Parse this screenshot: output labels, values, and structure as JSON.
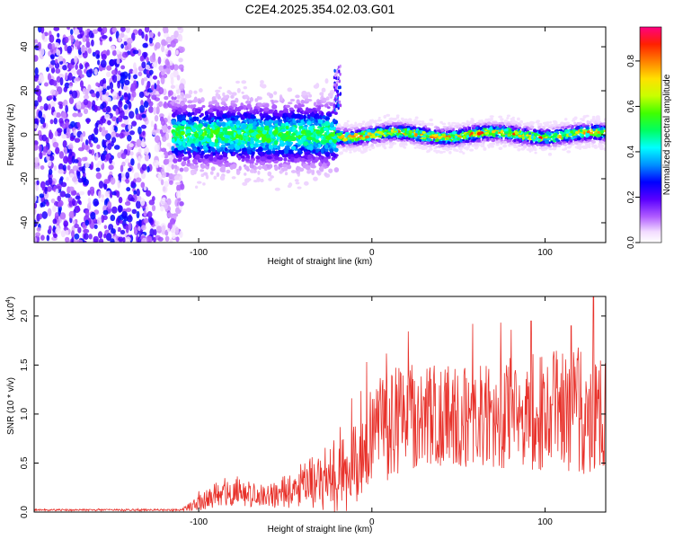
{
  "title": "C2E4.2025.354.02.03.G01",
  "chart_data": [
    {
      "type": "heatmap",
      "title": "C2E4.2025.354.02.03.G01",
      "xlabel": "Height of straight line (km)",
      "ylabel": "Frequency (Hz)",
      "xlim": [
        -195,
        135
      ],
      "ylim": [
        -49,
        49
      ],
      "xticks": [
        -100,
        0,
        100
      ],
      "xtick_labels": [
        "-100",
        "0",
        "100"
      ],
      "yticks": [
        -40,
        -20,
        0,
        20,
        40
      ],
      "ytick_labels": [
        "-40",
        "-20",
        "0",
        "20",
        "40"
      ],
      "colorbar": {
        "label": "Normalized spectral amplitude",
        "range": [
          0.0,
          0.95
        ],
        "ticks": [
          0.0,
          0.2,
          0.4,
          0.6,
          0.8
        ],
        "tick_labels": [
          "0.0",
          "0.2",
          "0.4",
          "0.6",
          "0.8"
        ]
      },
      "regions": [
        {
          "name": "noise",
          "x": [
            -195,
            -115
          ],
          "freq_range": [
            -49,
            49
          ],
          "amplitude": 0.25
        },
        {
          "name": "transition",
          "x": [
            -115,
            -20
          ],
          "freq_center": 0,
          "freq_halfwidth": 9,
          "amplitude": 0.35
        },
        {
          "name": "spike",
          "x": [
            -22,
            -18
          ],
          "freq_range": [
            10,
            32
          ],
          "amplitude": 0.3
        },
        {
          "name": "signal",
          "x": [
            -20,
            135
          ],
          "freq_center": 0,
          "freq_halfwidth": 4,
          "amplitude": 0.8
        }
      ]
    },
    {
      "type": "line",
      "xlabel": "Height of straight line (km)",
      "ylabel": "SNR (10 * v/v)",
      "y_scale_label": "(x10",
      "y_scale_exp": "4",
      "y_scale_close": ")",
      "xlim": [
        -195,
        135
      ],
      "ylim": [
        0,
        2.2
      ],
      "xticks": [
        -100,
        0,
        100
      ],
      "xtick_labels": [
        "-100",
        "0",
        "100"
      ],
      "yticks": [
        0.0,
        0.5,
        1.0,
        1.5,
        2.0
      ],
      "ytick_labels": [
        "0.0",
        "0.5",
        "1.0",
        "1.5",
        "2.0"
      ],
      "color": "#e8312a",
      "envelope": [
        {
          "x": -195,
          "base": 0.02,
          "spread": 0.01
        },
        {
          "x": -110,
          "base": 0.02,
          "spread": 0.01
        },
        {
          "x": -100,
          "base": 0.08,
          "spread": 0.08
        },
        {
          "x": -85,
          "base": 0.2,
          "spread": 0.15
        },
        {
          "x": -60,
          "base": 0.15,
          "spread": 0.12
        },
        {
          "x": -45,
          "base": 0.22,
          "spread": 0.2
        },
        {
          "x": -30,
          "base": 0.3,
          "spread": 0.3
        },
        {
          "x": -20,
          "base": 0.35,
          "spread": 0.45
        },
        {
          "x": -10,
          "base": 0.5,
          "spread": 0.5
        },
        {
          "x": 0,
          "base": 0.75,
          "spread": 0.45
        },
        {
          "x": 10,
          "base": 0.85,
          "spread": 0.6
        },
        {
          "x": 30,
          "base": 0.95,
          "spread": 0.5
        },
        {
          "x": 60,
          "base": 0.9,
          "spread": 0.55
        },
        {
          "x": 90,
          "base": 0.95,
          "spread": 0.6
        },
        {
          "x": 120,
          "base": 0.95,
          "spread": 0.7
        },
        {
          "x": 135,
          "base": 0.9,
          "spread": 0.6
        }
      ],
      "notable_peaks": [
        {
          "x": 92,
          "y": 1.95
        },
        {
          "x": 115,
          "y": 1.9
        },
        {
          "x": 128,
          "y": 2.2
        }
      ]
    }
  ]
}
